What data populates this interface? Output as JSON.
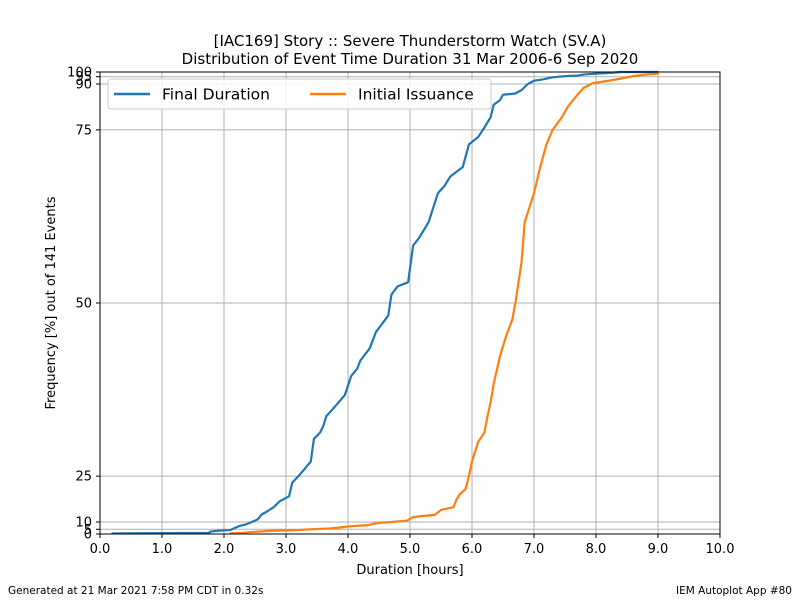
{
  "chart_data": {
    "type": "line",
    "title": "[IAC169] Story :: Severe Thunderstorm Watch (SV.A)",
    "subtitle": "Distribution of Event Time Duration 31 Mar 2006-6 Sep 2020",
    "xlabel": "Duration [hours]",
    "ylabel": "Frequency [%] out of 141 Events",
    "xlim": [
      0,
      10
    ],
    "ylim": [
      0,
      100
    ],
    "x_ticks": [
      "0.0",
      "1.0",
      "2.0",
      "3.0",
      "4.0",
      "5.0",
      "6.0",
      "7.0",
      "8.0",
      "9.0",
      "10.0"
    ],
    "y_ticks": [
      0,
      5,
      10,
      25,
      50,
      75,
      90,
      95,
      100
    ],
    "grid": true,
    "legend_position": "top-left",
    "series": [
      {
        "name": "Final Duration",
        "color": "#1f77b4",
        "points": [
          [
            0.2,
            0.7
          ],
          [
            1.75,
            1.4
          ],
          [
            1.8,
            3.0
          ],
          [
            1.9,
            3.7
          ],
          [
            2.1,
            4.3
          ],
          [
            2.15,
            5.5
          ],
          [
            2.25,
            7.5
          ],
          [
            2.35,
            8.5
          ],
          [
            2.45,
            10.0
          ],
          [
            2.55,
            11.5
          ],
          [
            2.6,
            13.5
          ],
          [
            2.7,
            15.0
          ],
          [
            2.8,
            16.5
          ],
          [
            2.9,
            18.5
          ],
          [
            3.0,
            19.5
          ],
          [
            3.05,
            20.0
          ],
          [
            3.1,
            23.5
          ],
          [
            3.2,
            25.0
          ],
          [
            3.3,
            26.5
          ],
          [
            3.4,
            28.0
          ],
          [
            3.45,
            32.0
          ],
          [
            3.55,
            33.0
          ],
          [
            3.6,
            34.0
          ],
          [
            3.65,
            35.5
          ],
          [
            3.8,
            37.0
          ],
          [
            3.95,
            38.5
          ],
          [
            4.05,
            41.0
          ],
          [
            4.15,
            42.0
          ],
          [
            4.2,
            43.0
          ],
          [
            4.35,
            44.5
          ],
          [
            4.45,
            46.5
          ],
          [
            4.65,
            48.5
          ],
          [
            4.7,
            51.0
          ],
          [
            4.8,
            52.0
          ],
          [
            4.97,
            52.5
          ],
          [
            5.05,
            57.0
          ],
          [
            5.15,
            58.0
          ],
          [
            5.3,
            60.0
          ],
          [
            5.45,
            64.0
          ],
          [
            5.55,
            65.0
          ],
          [
            5.65,
            66.5
          ],
          [
            5.85,
            68.0
          ],
          [
            5.95,
            72.0
          ],
          [
            6.1,
            73.5
          ],
          [
            6.2,
            75.5
          ],
          [
            6.3,
            78.0
          ],
          [
            6.35,
            81.5
          ],
          [
            6.45,
            83.0
          ],
          [
            6.5,
            85.0
          ],
          [
            6.7,
            85.5
          ],
          [
            6.8,
            87.0
          ],
          [
            6.9,
            90.0
          ],
          [
            7.0,
            92.0
          ],
          [
            7.15,
            93.0
          ],
          [
            7.3,
            94.5
          ],
          [
            7.5,
            95.5
          ],
          [
            7.7,
            96.0
          ],
          [
            7.8,
            97.0
          ],
          [
            8.0,
            98.0
          ],
          [
            8.15,
            98.5
          ],
          [
            8.25,
            99.0
          ],
          [
            8.4,
            100.0
          ],
          [
            9.0,
            100.0
          ]
        ]
      },
      {
        "name": "Initial Issuance",
        "color": "#ff7f0e",
        "points": [
          [
            2.1,
            0.7
          ],
          [
            2.3,
            1.5
          ],
          [
            2.4,
            2.2
          ],
          [
            2.6,
            3.0
          ],
          [
            2.75,
            3.7
          ],
          [
            3.0,
            4.0
          ],
          [
            3.2,
            4.3
          ],
          [
            3.4,
            5.0
          ],
          [
            3.7,
            5.7
          ],
          [
            3.9,
            6.5
          ],
          [
            4.0,
            7.2
          ],
          [
            4.3,
            8.0
          ],
          [
            4.5,
            9.5
          ],
          [
            4.7,
            10.0
          ],
          [
            4.95,
            10.7
          ],
          [
            5.05,
            12.5
          ],
          [
            5.2,
            13.0
          ],
          [
            5.4,
            13.5
          ],
          [
            5.5,
            15.5
          ],
          [
            5.7,
            16.5
          ],
          [
            5.75,
            19.0
          ],
          [
            5.8,
            20.5
          ],
          [
            5.9,
            22.0
          ],
          [
            5.95,
            25.0
          ],
          [
            6.0,
            28.0
          ],
          [
            6.1,
            31.5
          ],
          [
            6.2,
            33.0
          ],
          [
            6.25,
            35.5
          ],
          [
            6.3,
            37.5
          ],
          [
            6.35,
            40.0
          ],
          [
            6.45,
            43.5
          ],
          [
            6.55,
            46.0
          ],
          [
            6.65,
            48.0
          ],
          [
            6.7,
            50.0
          ],
          [
            6.8,
            55.0
          ],
          [
            6.85,
            60.0
          ],
          [
            7.0,
            64.0
          ],
          [
            7.1,
            68.0
          ],
          [
            7.2,
            72.0
          ],
          [
            7.3,
            75.0
          ],
          [
            7.45,
            78.0
          ],
          [
            7.55,
            81.0
          ],
          [
            7.7,
            85.0
          ],
          [
            7.8,
            88.0
          ],
          [
            7.95,
            90.5
          ],
          [
            8.2,
            92.0
          ],
          [
            8.4,
            93.5
          ],
          [
            8.6,
            95.5
          ],
          [
            8.8,
            97.0
          ],
          [
            9.0,
            98.0
          ]
        ]
      }
    ]
  },
  "footer": {
    "left": "Generated at 21 Mar 2021 7:58 PM CDT in 0.32s",
    "right": "IEM Autoplot App #80"
  }
}
